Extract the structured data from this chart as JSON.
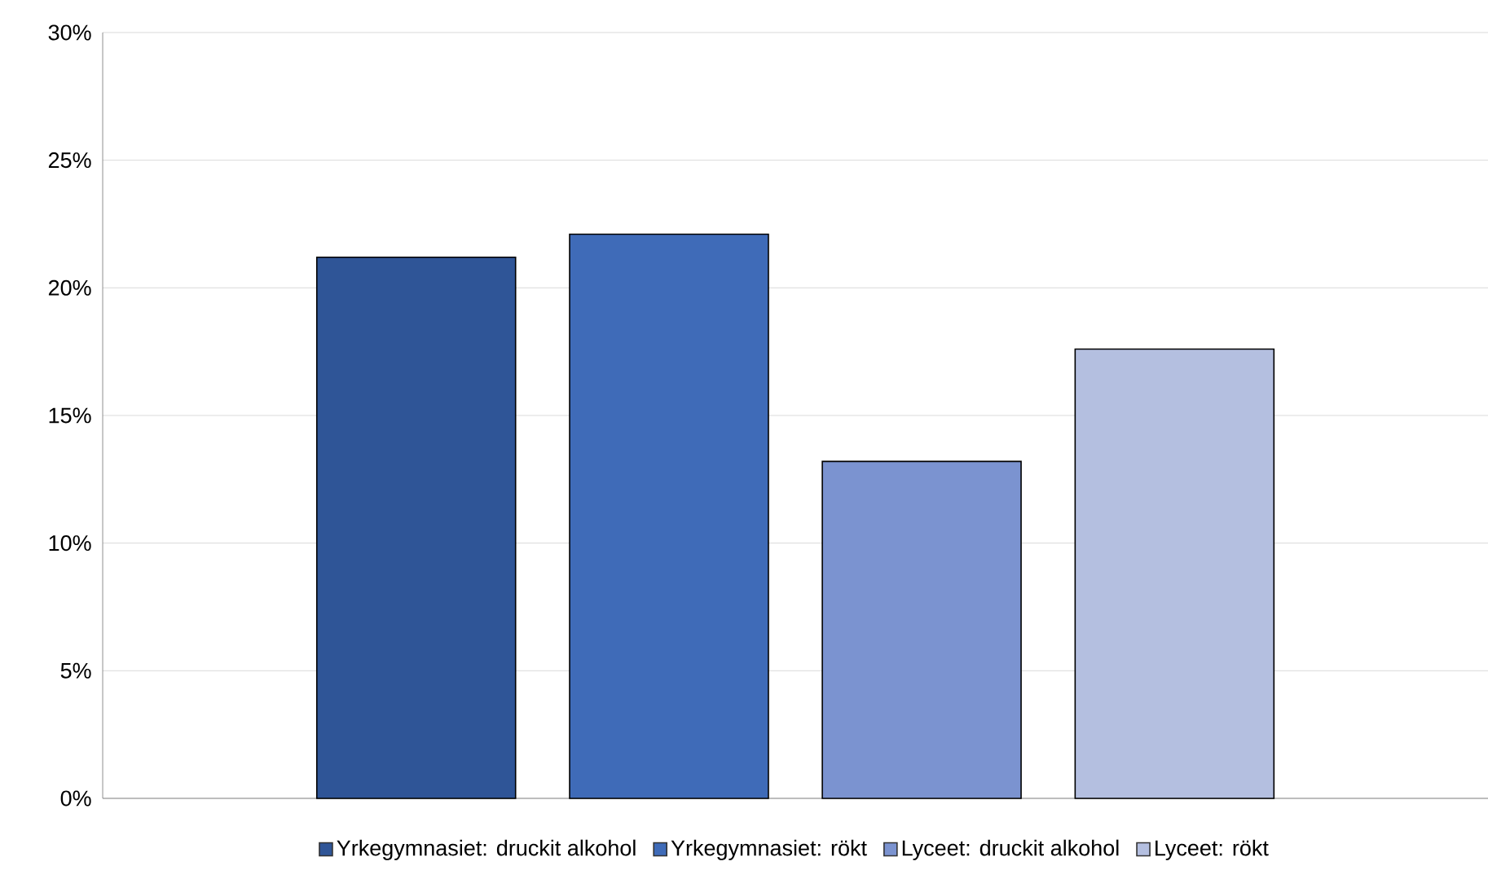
{
  "chart_data": {
    "type": "bar",
    "categories": [
      null
    ],
    "series": [
      {
        "name": "Yrkegymnasiet: druckit alkohol",
        "color": "#2f5597",
        "values": [
          21.2
        ]
      },
      {
        "name": "Yrkegymnasiet: rökt",
        "color": "#3f6bb8",
        "values": [
          22.1
        ]
      },
      {
        "name": "Lyceet: druckit alkohol",
        "color": "#7b93d0",
        "values": [
          13.2
        ]
      },
      {
        "name": "Lyceet: rökt",
        "color": "#b4bfe0",
        "values": [
          17.6
        ]
      }
    ],
    "ylim": [
      0,
      30
    ],
    "yticks": [
      {
        "value": 0,
        "label": "0%"
      },
      {
        "value": 5,
        "label": "5%"
      },
      {
        "value": 10,
        "label": "10%"
      },
      {
        "value": 15,
        "label": "15%"
      },
      {
        "value": 20,
        "label": "20%"
      },
      {
        "value": 25,
        "label": "25%"
      },
      {
        "value": 30,
        "label": "30%"
      }
    ],
    "grid": "y",
    "legend": "bottom"
  }
}
